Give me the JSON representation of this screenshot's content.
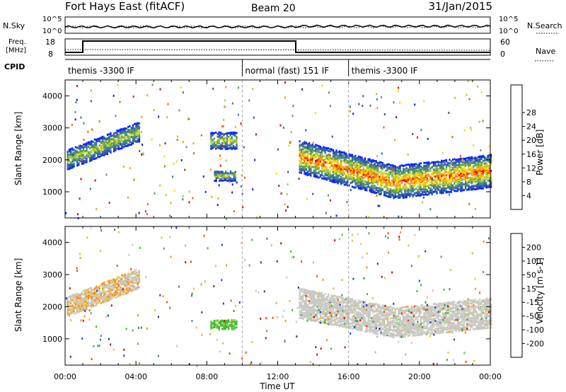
{
  "header": {
    "site": "Fort Hays East (fitACF)",
    "beam": "Beam 20",
    "date": "31/Jan/2015"
  },
  "top_panels": {
    "nsky_label": "N.Sky",
    "nsky_ticks": [
      "10^5",
      "10^0"
    ],
    "nsearch_label": "N.Search",
    "nsearch_ticks": [
      "10^5",
      "10^0"
    ],
    "freq_label": "Freq.",
    "freq_unit": "[MHz]",
    "freq_ticks": [
      "18",
      "8"
    ],
    "nave_label": "Nave",
    "nave_ticks": [
      "60",
      "0"
    ],
    "cpid_label": "CPID",
    "cpid_segments": [
      {
        "start_h": 0,
        "end_h": 10,
        "label": "themis -3300 IF"
      },
      {
        "start_h": 10,
        "end_h": 16,
        "label": "normal (fast) 151 IF"
      },
      {
        "start_h": 16,
        "end_h": 24,
        "label": "themis -3300 IF"
      }
    ]
  },
  "time_axis": {
    "ticks": [
      "00:00",
      "04:00",
      "08:00",
      "12:00",
      "16:00",
      "20:00",
      "00:00"
    ],
    "label": "Time UT",
    "range_h": [
      0,
      24
    ]
  },
  "chart_data": [
    {
      "type": "heatmap",
      "title": "Power",
      "ylabel": "Slant Range [km]",
      "yticks": [
        "1000",
        "2000",
        "3000",
        "4000"
      ],
      "ylim": [
        180,
        4500
      ],
      "colorbar_label": "Power [dB]",
      "colorbar_ticks": [
        "4",
        "8",
        "12",
        "16",
        "20",
        "24",
        "28"
      ],
      "colorscale": [
        "#0020ff",
        "#2d52a8",
        "#3c7a8c",
        "#5a9c4a",
        "#a8c832",
        "#ffd700",
        "#ff9900",
        "#ff5500",
        "#e60000"
      ],
      "bands": [
        {
          "label": "main echo band",
          "t": [
            13.2,
            24
          ],
          "r_center": [
            2100,
            1300,
            1650
          ],
          "r_width": 1000
        },
        {
          "label": "early echoes",
          "t": [
            0.1,
            4.2
          ],
          "r_center": [
            2000,
            2900
          ],
          "r_width": 600
        },
        {
          "label": "morning patch",
          "t": [
            8.2,
            9.7
          ],
          "r_center": [
            2600,
            2600
          ],
          "r_width": 500
        },
        {
          "label": "low patch",
          "t": [
            8.4,
            9.6
          ],
          "r_center": [
            1500,
            1500
          ],
          "r_width": 300
        }
      ]
    },
    {
      "type": "heatmap",
      "title": "Velocity",
      "ylabel": "Slant Range [km]",
      "yticks": [
        "1000",
        "2000",
        "3000",
        "4000"
      ],
      "ylim": [
        180,
        4500
      ],
      "colorbar_label": "Velocity [m s-1]",
      "colorbar_ticks": [
        "200",
        "100",
        "50",
        "15",
        "-15",
        "-50",
        "-100",
        "-200"
      ],
      "colorscale": [
        "#1f3fbf",
        "#3a8a6a",
        "#44b82c",
        "#8cd45a",
        "#c8c8c0",
        "#f0b840",
        "#ff8c00",
        "#ff4400",
        "#e00000"
      ],
      "bands": [
        {
          "label": "ground scatter",
          "t": [
            13.2,
            24
          ],
          "r_center": [
            2100,
            1500,
            1800
          ],
          "r_width": 900
        },
        {
          "label": "green patch",
          "t": [
            8.2,
            9.7
          ],
          "r_center": [
            1450,
            1450
          ],
          "r_width": 300
        },
        {
          "label": "early echoes",
          "t": [
            0.1,
            4.2
          ],
          "r_center": [
            2000,
            2900
          ],
          "r_width": 600
        }
      ]
    }
  ]
}
